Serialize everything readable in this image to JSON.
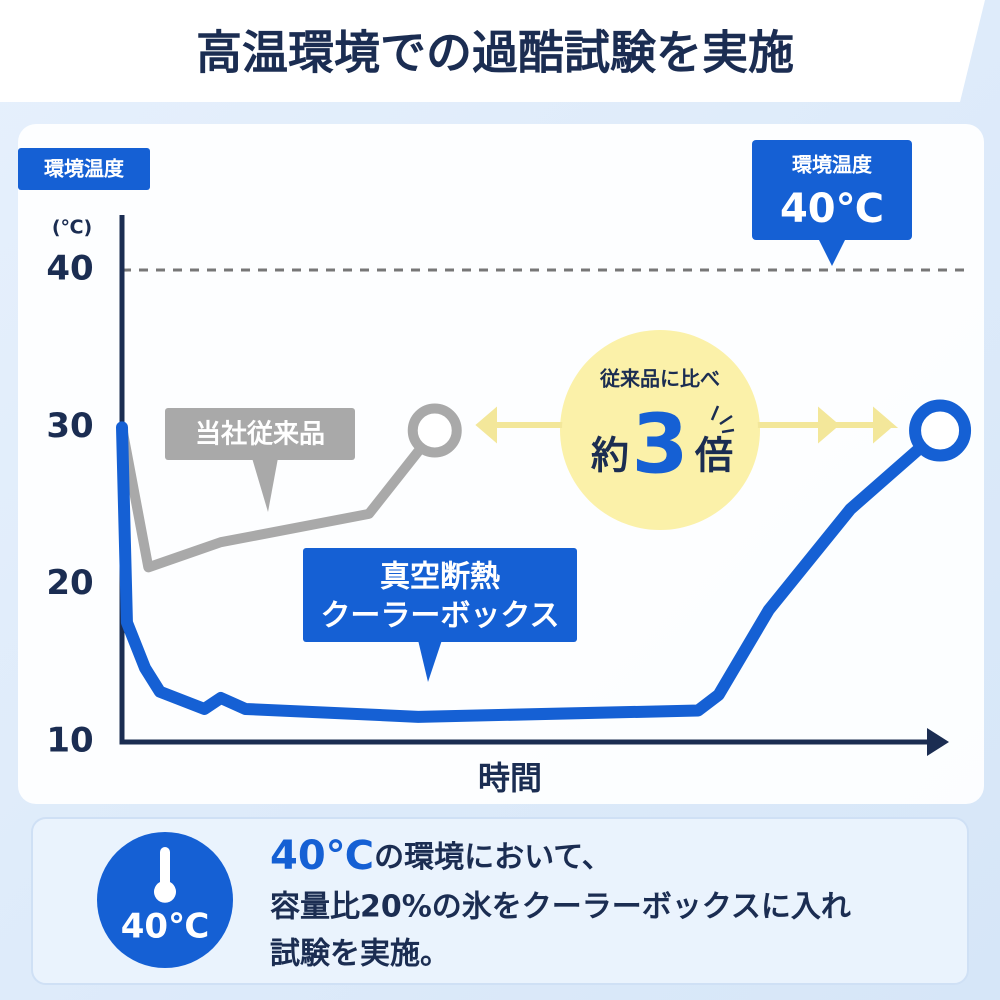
{
  "title": "高温環境での過酷試験を実施",
  "chart_data": {
    "type": "line",
    "y_label": "環境温度",
    "y_unit": "(℃)",
    "x_label": "時間",
    "xlim": [
      0,
      100
    ],
    "ylim": [
      10,
      43.5
    ],
    "yticks": [
      10,
      20,
      30,
      40
    ],
    "grid": false,
    "series": [
      {
        "name": "当社従来品",
        "color": "#a9a9a9",
        "x": [
          0,
          3.2,
          12,
          30,
          38
        ],
        "values": [
          30,
          21.1,
          22.7,
          24.5,
          29.8
        ]
      },
      {
        "name": [
          "真空断熱",
          "クーラーボックス"
        ],
        "color": "#1560d4",
        "x": [
          0,
          0.6,
          2.8,
          4.6,
          10,
          12,
          15,
          36,
          70,
          72.5,
          78.6,
          88.5,
          99.4
        ],
        "values": [
          30,
          17.6,
          14.7,
          13.2,
          12.1,
          12.8,
          12.1,
          11.6,
          12,
          13,
          18.4,
          24.8,
          29.8
        ]
      }
    ],
    "reference_line": {
      "value": 40,
      "label": "環境温度",
      "value_label": "40℃"
    },
    "comparison": {
      "label": "従来品に比べ",
      "prefix": "約",
      "value": 3,
      "suffix": "倍"
    }
  },
  "note": {
    "icon_label": "40℃",
    "lines": [
      [
        "40℃",
        "の環境において、"
      ],
      "容量比20%の氷をクーラーボックスに入れ",
      "試験を実施。"
    ]
  }
}
